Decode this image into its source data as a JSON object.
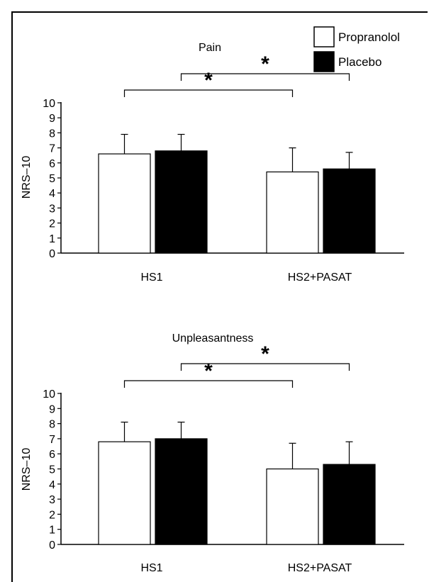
{
  "legend": {
    "position": "top-right",
    "items": [
      {
        "label": "Propranolol",
        "fill": "#ffffff"
      },
      {
        "label": "Placebo",
        "fill": "#000000"
      }
    ]
  },
  "chart_data": [
    {
      "type": "bar",
      "title": "Pain",
      "ylabel": "NRS–10",
      "xlabel": "",
      "ylim": [
        0,
        10
      ],
      "yticks": [
        0,
        1,
        2,
        3,
        4,
        5,
        6,
        7,
        8,
        9,
        10
      ],
      "categories": [
        "HS1",
        "HS2+PASAT"
      ],
      "series": [
        {
          "name": "Propranolol",
          "values": [
            6.6,
            5.4
          ],
          "error": [
            1.3,
            1.6
          ]
        },
        {
          "name": "Placebo",
          "values": [
            6.8,
            5.6
          ],
          "error": [
            1.1,
            1.1
          ]
        }
      ],
      "significance": [
        {
          "from_series": "Propranolol",
          "mark": "*"
        },
        {
          "from_series": "Placebo",
          "mark": "*"
        }
      ],
      "grid": false
    },
    {
      "type": "bar",
      "title": "Unpleasantness",
      "ylabel": "NRS–10",
      "xlabel": "",
      "ylim": [
        0,
        10
      ],
      "yticks": [
        0,
        1,
        2,
        3,
        4,
        5,
        6,
        7,
        8,
        9,
        10
      ],
      "categories": [
        "HS1",
        "HS2+PASAT"
      ],
      "series": [
        {
          "name": "Propranolol",
          "values": [
            6.8,
            5.0
          ],
          "error": [
            1.3,
            1.7
          ]
        },
        {
          "name": "Placebo",
          "values": [
            7.0,
            5.3
          ],
          "error": [
            1.1,
            1.5
          ]
        }
      ],
      "significance": [
        {
          "from_series": "Propranolol",
          "mark": "*"
        },
        {
          "from_series": "Placebo",
          "mark": "*"
        }
      ],
      "grid": false
    }
  ]
}
